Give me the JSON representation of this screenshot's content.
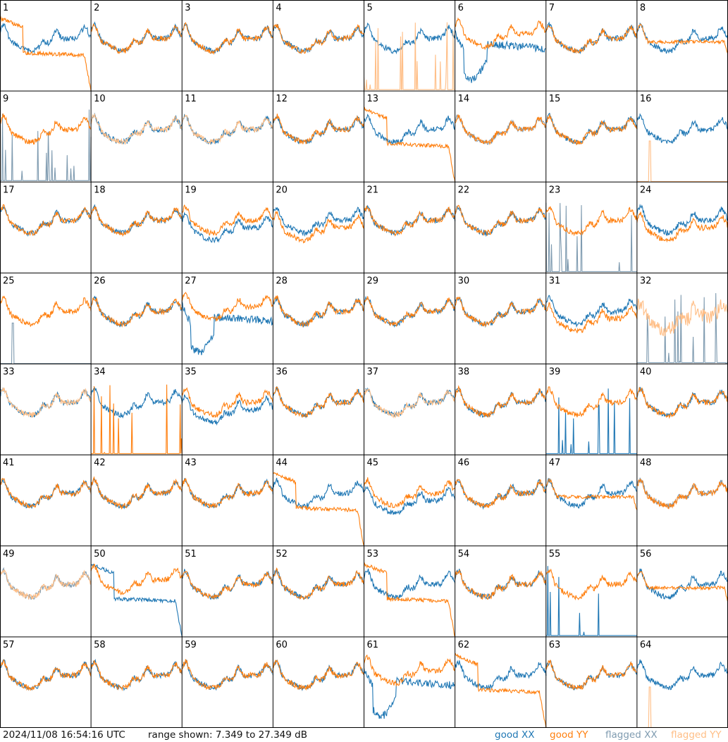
{
  "chart_data": {
    "type": "line",
    "panel_labels": [
      "1",
      "2",
      "3",
      "4",
      "5",
      "6",
      "7",
      "8",
      "9",
      "10",
      "11",
      "12",
      "13",
      "14",
      "15",
      "16",
      "17",
      "18",
      "19",
      "20",
      "21",
      "22",
      "23",
      "24",
      "25",
      "26",
      "27",
      "28",
      "29",
      "30",
      "31",
      "32",
      "33",
      "34",
      "35",
      "36",
      "37",
      "38",
      "39",
      "40",
      "41",
      "42",
      "43",
      "44",
      "45",
      "46",
      "47",
      "48",
      "49",
      "50",
      "51",
      "52",
      "53",
      "54",
      "55",
      "56",
      "57",
      "58",
      "59",
      "60",
      "61",
      "62",
      "63",
      "64"
    ],
    "ylim_db": [
      7.349,
      27.349
    ],
    "series_styles": {
      "good_xx": {
        "label": "good XX",
        "color": "#1f77b4"
      },
      "good_yy": {
        "label": "good YY",
        "color": "#ff7f0e"
      },
      "flagged_xx": {
        "label": "flagged XX",
        "color": "#7f9bb0"
      },
      "flagged_yy": {
        "label": "flagged YY",
        "color": "#ffbe86"
      }
    },
    "panel_kinds": {
      "1": [
        "good",
        "decay"
      ],
      "2": [
        "good",
        "good"
      ],
      "3": [
        "good",
        "good"
      ],
      "4": [
        "good",
        "good"
      ],
      "5": [
        "good",
        "spikes_flag"
      ],
      "6": [
        "dip",
        "good_high"
      ],
      "7": [
        "good",
        "good"
      ],
      "8": [
        "good",
        "flat"
      ],
      "9": [
        "spikes_flag",
        "good"
      ],
      "10": [
        "good",
        "flag_curve"
      ],
      "11": [
        "good",
        "flag_curve"
      ],
      "12": [
        "good",
        "good"
      ],
      "13": [
        "good",
        "decay"
      ],
      "14": [
        "flag_curve",
        "good"
      ],
      "15": [
        "good",
        "good"
      ],
      "16": [
        "good",
        "spike_single_flag"
      ],
      "17": [
        "good",
        "good"
      ],
      "18": [
        "good",
        "good"
      ],
      "19": [
        "good_low",
        "good"
      ],
      "20": [
        "good",
        "good_low"
      ],
      "21": [
        "good",
        "good"
      ],
      "22": [
        "good",
        "good"
      ],
      "23": [
        "spikes_flag",
        "good"
      ],
      "24": [
        "good",
        "good_low"
      ],
      "25": [
        "spike_single_flag",
        "good"
      ],
      "26": [
        "good",
        "good"
      ],
      "27": [
        "dip",
        "good_high"
      ],
      "28": [
        "good",
        "good"
      ],
      "29": [
        "good",
        "good"
      ],
      "30": [
        "good",
        "good"
      ],
      "31": [
        "good",
        "good_low"
      ],
      "32": [
        "spikes_flag",
        "flag_noisy"
      ],
      "33": [
        "good",
        "flag_curve"
      ],
      "34": [
        "good",
        "spikes_good"
      ],
      "35": [
        "good_low",
        "good"
      ],
      "36": [
        "good",
        "good"
      ],
      "37": [
        "good",
        "flag_curve"
      ],
      "38": [
        "good",
        "good"
      ],
      "39": [
        "spikes_good",
        "good"
      ],
      "40": [
        "good",
        "good"
      ],
      "41": [
        "good",
        "good"
      ],
      "42": [
        "good",
        "good"
      ],
      "43": [
        "good",
        "good"
      ],
      "44": [
        "good",
        "decay"
      ],
      "45": [
        "good_low",
        "good"
      ],
      "46": [
        "good",
        "good"
      ],
      "47": [
        "good",
        "flat"
      ],
      "48": [
        "flag_curve",
        "good"
      ],
      "49": [
        "flag_curve",
        "flag_curve"
      ],
      "50": [
        "decay",
        "good_high"
      ],
      "51": [
        "good",
        "good"
      ],
      "52": [
        "good",
        "good"
      ],
      "53": [
        "good",
        "decay"
      ],
      "54": [
        "good",
        "good"
      ],
      "55": [
        "spikes_good",
        "good"
      ],
      "56": [
        "good",
        "flat"
      ],
      "57": [
        "good",
        "good"
      ],
      "58": [
        "good",
        "good"
      ],
      "59": [
        "good",
        "good"
      ],
      "60": [
        "good",
        "good"
      ],
      "61": [
        "dip",
        "good_high"
      ],
      "62": [
        "good",
        "decay"
      ],
      "63": [
        "good",
        "good"
      ],
      "64": [
        "good",
        "spike_single_flag"
      ]
    }
  },
  "footer": {
    "timestamp": "2024/11/08 16:54:16 UTC",
    "range_text": "range shown: 7.349 to 27.349 dB",
    "legend": {
      "good_xx": "good XX",
      "good_yy": "good YY",
      "flagged_xx": "flagged XX",
      "flagged_yy": "flagged YY"
    }
  }
}
